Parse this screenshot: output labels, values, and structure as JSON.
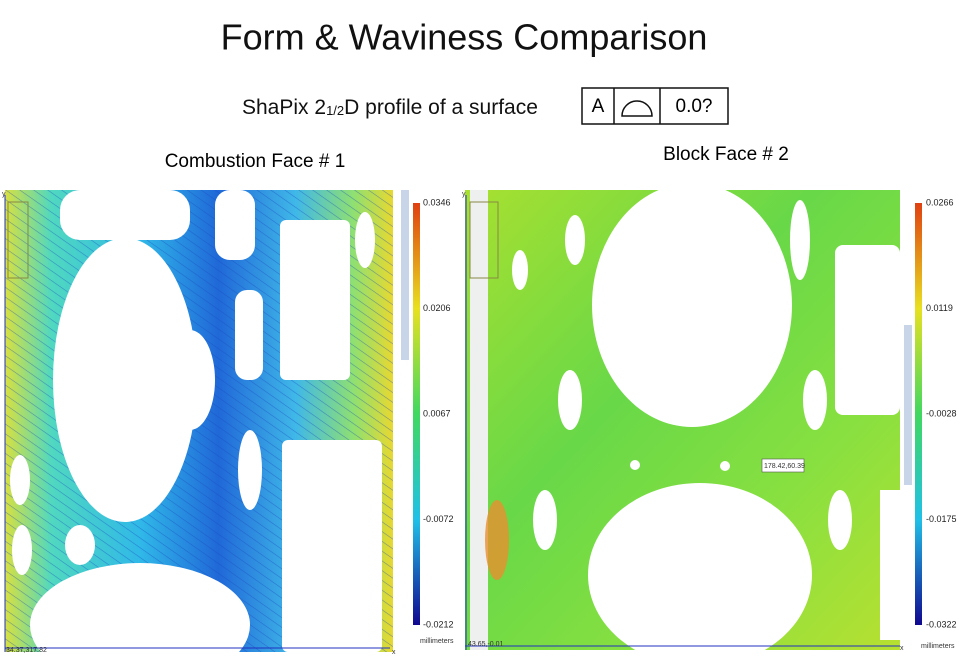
{
  "header": {
    "title": "Form & Waviness Comparison",
    "subtitle": {
      "before": "ShaPix 2",
      "fraction": "1/2",
      "after": "D profile of a surface"
    },
    "feature_frame": {
      "datum": "A",
      "tolerance": "0.0?"
    }
  },
  "panels": [
    {
      "label": "Combustion Face # 1",
      "colorbar_ticks": [
        "0.0346",
        "0.0206",
        "0.0067",
        "-0.0072",
        "-0.0212"
      ],
      "unit": "millimeters",
      "corner_coordinates": "34.37,317.82",
      "y_axis": "y",
      "x_axis": "x"
    },
    {
      "label": "Block Face # 2",
      "colorbar_ticks": [
        "0.0266",
        "0.0119",
        "-0.0028",
        "-0.0175",
        "-0.0322"
      ],
      "unit": "millimeters",
      "corner_coordinates": "43.65,-0.01",
      "probe_coordinates": "178.42,60.39",
      "y_axis": "y",
      "x_axis": "x"
    }
  ]
}
